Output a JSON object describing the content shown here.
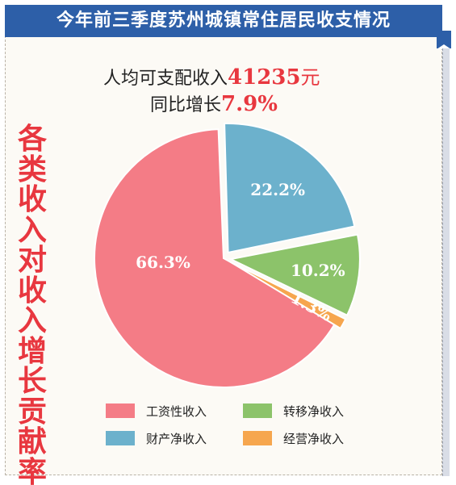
{
  "header": {
    "title": "今年前三季度苏州城镇常住居民收支情况"
  },
  "summary": {
    "income_label": "人均可支配收入",
    "income_value": "41235",
    "income_unit": "元",
    "growth_label": "同比增长",
    "growth_value": "7.9%"
  },
  "vertical_title": [
    "各",
    "类",
    "收",
    "入",
    "对",
    "收",
    "入",
    "增",
    "长",
    "贡",
    "献",
    "率"
  ],
  "colors": {
    "header_bg": "#2d5fa8",
    "accent_red": "#e8373f",
    "wage": "#f47c86",
    "property": "#6cb1cc",
    "transfer": "#8cc36a",
    "business": "#f6a64e"
  },
  "chart_data": {
    "type": "pie",
    "title": "各类收入对收入增长贡献率",
    "slices": [
      {
        "name": "工资性收入",
        "value": 66.3,
        "label": "66.3%",
        "color": "#f47c86"
      },
      {
        "name": "财产净收入",
        "value": 22.2,
        "label": "22.2%",
        "color": "#6cb1cc"
      },
      {
        "name": "转移净收入",
        "value": 10.2,
        "label": "10.2%",
        "color": "#8cc36a"
      },
      {
        "name": "经营净收入",
        "value": 1.3,
        "label": "1.3%",
        "color": "#f6a64e"
      }
    ],
    "legend": [
      {
        "name": "工资性收入",
        "color": "#f47c86"
      },
      {
        "name": "转移净收入",
        "color": "#8cc36a"
      },
      {
        "name": "财产净收入",
        "color": "#6cb1cc"
      },
      {
        "name": "经营净收入",
        "color": "#f6a64e"
      }
    ],
    "legend_position": "bottom"
  }
}
